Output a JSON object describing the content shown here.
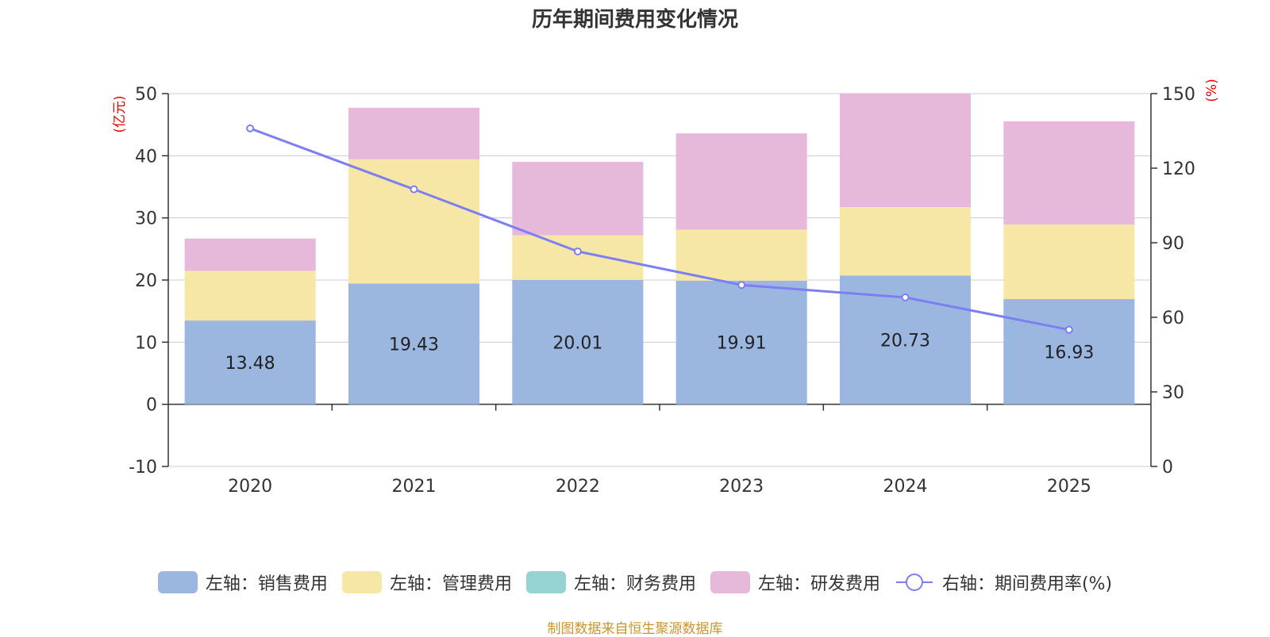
{
  "chart_data": {
    "type": "bar",
    "title": "历年期间费用变化情况",
    "categories": [
      "2020",
      "2021",
      "2022",
      "2023",
      "2024",
      "2025"
    ],
    "left_axis": {
      "label": "(亿元)",
      "ylim": [
        -10,
        50
      ],
      "ticks": [
        -10,
        0,
        10,
        20,
        30,
        40,
        50
      ]
    },
    "right_axis": {
      "label": "(%)",
      "ylim": [
        0,
        150
      ],
      "ticks": [
        0,
        30,
        60,
        90,
        120,
        150
      ]
    },
    "series": [
      {
        "name": "左轴：销售费用",
        "axis": "left",
        "kind": "bar",
        "color": "#9bb7e0",
        "values": [
          13.48,
          19.43,
          20.01,
          19.91,
          20.73,
          16.93
        ],
        "show_labels": true
      },
      {
        "name": "左轴：管理费用",
        "axis": "left",
        "kind": "bar",
        "color": "#f7e7a6",
        "values": [
          8.0,
          20.0,
          7.2,
          8.2,
          11.0,
          12.0
        ],
        "show_labels": false
      },
      {
        "name": "左轴：财务费用",
        "axis": "left",
        "kind": "bar",
        "color": "#96d4d4",
        "values": [
          0,
          0,
          0,
          0,
          0,
          0
        ],
        "show_labels": false
      },
      {
        "name": "左轴：研发费用",
        "axis": "left",
        "kind": "bar",
        "color": "#e6b8d9",
        "values": [
          5.2,
          8.3,
          11.8,
          15.5,
          18.3,
          16.6
        ],
        "show_labels": false
      },
      {
        "name": "右轴：期间费用率(%)",
        "axis": "right",
        "kind": "line",
        "color": "#7b7ff2",
        "values": [
          136,
          111.5,
          86.5,
          73,
          68,
          55
        ]
      }
    ],
    "grid": true,
    "legend_position": "bottom"
  },
  "footer": "制图数据来自恒生聚源数据库"
}
